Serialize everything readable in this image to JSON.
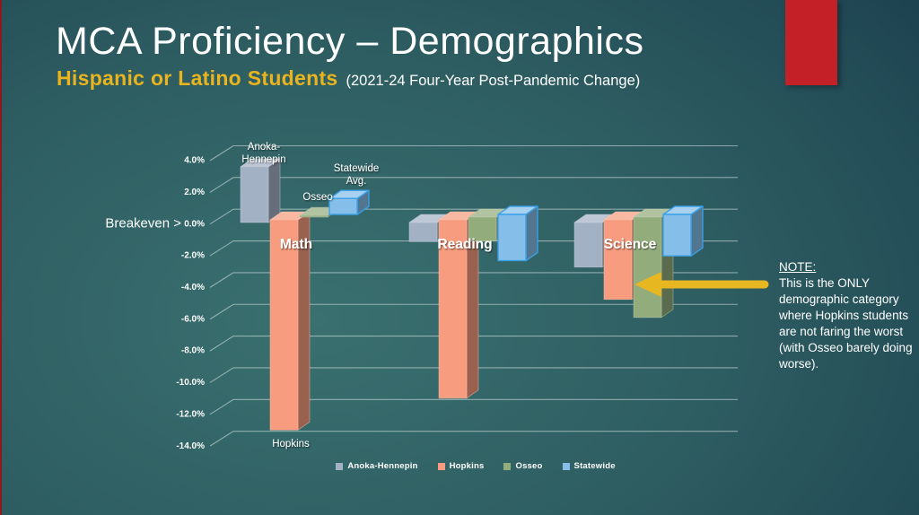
{
  "slide": {
    "title": "MCA Proficiency – Demographics",
    "subtitle": "Hispanic or Latino Students",
    "subtitle_note": "(2021-24 Four-Year Post-Pandemic Change)",
    "accent_color": "#c32127",
    "subtitle_color": "#e9b41e"
  },
  "chart_data": {
    "type": "bar",
    "view": "3d-column",
    "categories": [
      "Math",
      "Reading",
      "Science"
    ],
    "series": [
      {
        "name": "Anoka-Hennepin",
        "color": "#a3b1c4",
        "values": [
          3.5,
          -1.2,
          -2.8
        ]
      },
      {
        "name": "Hopkins",
        "color": "#f79c7e",
        "values": [
          -13.2,
          -11.2,
          -5.0
        ]
      },
      {
        "name": "Osseo",
        "color": "#93ac7c",
        "values": [
          0.1,
          -1.5,
          -6.3
        ]
      },
      {
        "name": "Statewide",
        "color": "#85bfe9",
        "stroke": "#3ba0e8",
        "values": [
          1.0,
          -2.9,
          -2.6
        ]
      }
    ],
    "ylim": [
      -14,
      4
    ],
    "ytick_step": 2,
    "ytick_labels": [
      "4.0%",
      "2.0%",
      "0.0%",
      "-2.0%",
      "-4.0%",
      "-6.0%",
      "-8.0%",
      "-10.0%",
      "-12.0%",
      "-14.0%"
    ],
    "breakeven_label": "Breakeven >",
    "grid": true,
    "grid_color": "rgba(223,234,234,0.55)",
    "legend_position": "bottom",
    "legend": [
      "Anoka-Hennepin",
      "Hopkins",
      "Osseo",
      "Statewide"
    ],
    "annotations": [
      {
        "lines": [
          "Anoka-",
          "Hennepin"
        ]
      },
      {
        "lines": [
          "Osseo"
        ]
      },
      {
        "lines": [
          "Statewide",
          "Avg."
        ]
      },
      {
        "lines": [
          "Hopkins"
        ]
      }
    ]
  },
  "note": {
    "heading": "NOTE:",
    "body": "This is the ONLY demographic category where Hopkins students are not faring the worst (with Osseo barely doing worse).",
    "arrow_color": "#e7b722"
  }
}
